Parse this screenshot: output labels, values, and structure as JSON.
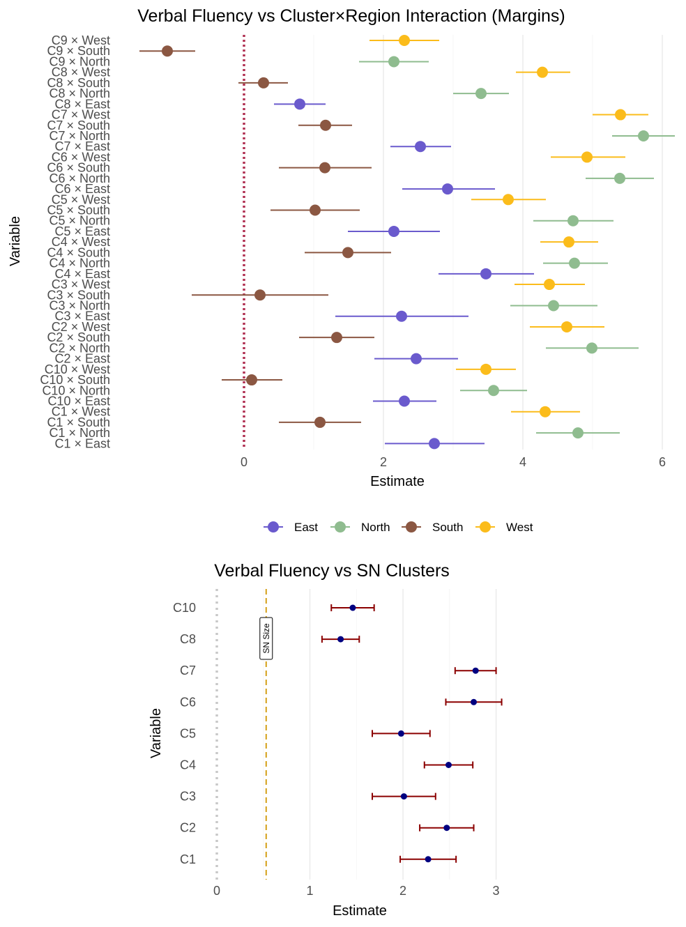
{
  "chart_data": [
    {
      "type": "forest",
      "title": "Verbal Fluency vs Cluster×Region Interaction (Margins)",
      "xlabel": "Estimate",
      "ylabel": "Variable",
      "xlim": [
        -1.85,
        6.3
      ],
      "x_ticks": [
        0,
        2,
        4,
        6
      ],
      "reference_line": {
        "x": 0,
        "style": "dotted",
        "color": "#b03052"
      },
      "grid": "vertical",
      "legend": {
        "position": "bottom",
        "entries": [
          {
            "name": "East",
            "color": "#6a5acd"
          },
          {
            "name": "North",
            "color": "#8fbc8f"
          },
          {
            "name": "South",
            "color": "#8b5742"
          },
          {
            "name": "West",
            "color": "#fbbc1b"
          }
        ]
      },
      "points": [
        {
          "label": "C9 × West",
          "group": "West",
          "est": 2.3,
          "lo": 1.8,
          "hi": 2.8
        },
        {
          "label": "C9 × South",
          "group": "South",
          "est": -1.1,
          "lo": -1.5,
          "hi": -0.7
        },
        {
          "label": "C9 × North",
          "group": "North",
          "est": 2.15,
          "lo": 1.65,
          "hi": 2.65
        },
        {
          "label": "C8 × West",
          "group": "West",
          "est": 4.28,
          "lo": 3.9,
          "hi": 4.68
        },
        {
          "label": "C8 × South",
          "group": "South",
          "est": 0.28,
          "lo": -0.08,
          "hi": 0.63
        },
        {
          "label": "C8 × North",
          "group": "North",
          "est": 3.4,
          "lo": 3.0,
          "hi": 3.8
        },
        {
          "label": "C8 × East",
          "group": "East",
          "est": 0.8,
          "lo": 0.43,
          "hi": 1.17
        },
        {
          "label": "C7 × West",
          "group": "West",
          "est": 5.4,
          "lo": 5.0,
          "hi": 5.8
        },
        {
          "label": "C7 × South",
          "group": "South",
          "est": 1.17,
          "lo": 0.78,
          "hi": 1.55
        },
        {
          "label": "C7 × North",
          "group": "North",
          "est": 5.73,
          "lo": 5.28,
          "hi": 6.18
        },
        {
          "label": "C7 × East",
          "group": "East",
          "est": 2.53,
          "lo": 2.1,
          "hi": 2.97
        },
        {
          "label": "C6 × West",
          "group": "West",
          "est": 4.92,
          "lo": 4.4,
          "hi": 5.47
        },
        {
          "label": "C6 × South",
          "group": "South",
          "est": 1.16,
          "lo": 0.5,
          "hi": 1.83
        },
        {
          "label": "C6 × North",
          "group": "North",
          "est": 5.39,
          "lo": 4.9,
          "hi": 5.88
        },
        {
          "label": "C6 × East",
          "group": "East",
          "est": 2.92,
          "lo": 2.27,
          "hi": 3.6
        },
        {
          "label": "C5 × West",
          "group": "West",
          "est": 3.79,
          "lo": 3.26,
          "hi": 4.33
        },
        {
          "label": "C5 × South",
          "group": "South",
          "est": 1.02,
          "lo": 0.38,
          "hi": 1.66
        },
        {
          "label": "C5 × North",
          "group": "North",
          "est": 4.72,
          "lo": 4.15,
          "hi": 5.3
        },
        {
          "label": "C5 × East",
          "group": "East",
          "est": 2.15,
          "lo": 1.49,
          "hi": 2.81
        },
        {
          "label": "C4 × West",
          "group": "West",
          "est": 4.66,
          "lo": 4.25,
          "hi": 5.08
        },
        {
          "label": "C4 × South",
          "group": "South",
          "est": 1.49,
          "lo": 0.87,
          "hi": 2.11
        },
        {
          "label": "C4 × North",
          "group": "North",
          "est": 4.74,
          "lo": 4.29,
          "hi": 5.22
        },
        {
          "label": "C4 × East",
          "group": "East",
          "est": 3.47,
          "lo": 2.79,
          "hi": 4.16
        },
        {
          "label": "C3 × West",
          "group": "West",
          "est": 4.38,
          "lo": 3.88,
          "hi": 4.89
        },
        {
          "label": "C3 × South",
          "group": "South",
          "est": 0.23,
          "lo": -0.75,
          "hi": 1.21
        },
        {
          "label": "C3 × North",
          "group": "North",
          "est": 4.44,
          "lo": 3.82,
          "hi": 5.07
        },
        {
          "label": "C3 × East",
          "group": "East",
          "est": 2.26,
          "lo": 1.31,
          "hi": 3.22
        },
        {
          "label": "C2 × West",
          "group": "West",
          "est": 4.63,
          "lo": 4.1,
          "hi": 5.17
        },
        {
          "label": "C2 × South",
          "group": "South",
          "est": 1.33,
          "lo": 0.79,
          "hi": 1.87
        },
        {
          "label": "C2 × North",
          "group": "North",
          "est": 4.99,
          "lo": 4.33,
          "hi": 5.66
        },
        {
          "label": "C2 × East",
          "group": "East",
          "est": 2.47,
          "lo": 1.87,
          "hi": 3.07
        },
        {
          "label": "C10 × West",
          "group": "West",
          "est": 3.47,
          "lo": 3.04,
          "hi": 3.9
        },
        {
          "label": "C10 × South",
          "group": "South",
          "est": 0.11,
          "lo": -0.32,
          "hi": 0.55
        },
        {
          "label": "C10 × North",
          "group": "North",
          "est": 3.58,
          "lo": 3.1,
          "hi": 4.06
        },
        {
          "label": "C10 × East",
          "group": "East",
          "est": 2.3,
          "lo": 1.85,
          "hi": 2.76
        },
        {
          "label": "C1 × West",
          "group": "West",
          "est": 4.32,
          "lo": 3.83,
          "hi": 4.82
        },
        {
          "label": "C1 × South",
          "group": "South",
          "est": 1.09,
          "lo": 0.5,
          "hi": 1.68
        },
        {
          "label": "C1 × North",
          "group": "North",
          "est": 4.79,
          "lo": 4.19,
          "hi": 5.39
        },
        {
          "label": "C1 × East",
          "group": "East",
          "est": 2.73,
          "lo": 2.02,
          "hi": 3.45
        }
      ]
    },
    {
      "type": "forest",
      "title": "Verbal Fluency vs SN Clusters",
      "xlabel": "Estimate",
      "ylabel": "Variable",
      "xlim": [
        -0.12,
        3.55
      ],
      "x_ticks": [
        0,
        1,
        2,
        3
      ],
      "reference_line": {
        "x": 0,
        "style": "dotted",
        "color": "#c8c8c8"
      },
      "annotation_line": {
        "x": 0.53,
        "style": "dashed",
        "color": "#d4a017",
        "label": "SN Size"
      },
      "grid": "vertical",
      "point_color": "#000080",
      "errorbar_color": "#8b0000",
      "points": [
        {
          "label": "C10",
          "est": 1.46,
          "lo": 1.23,
          "hi": 1.69
        },
        {
          "label": "C8",
          "est": 1.33,
          "lo": 1.13,
          "hi": 1.53
        },
        {
          "label": "C7",
          "est": 2.78,
          "lo": 2.56,
          "hi": 3.0
        },
        {
          "label": "C6",
          "est": 2.76,
          "lo": 2.46,
          "hi": 3.06
        },
        {
          "label": "C5",
          "est": 1.98,
          "lo": 1.67,
          "hi": 2.29
        },
        {
          "label": "C4",
          "est": 2.49,
          "lo": 2.23,
          "hi": 2.75
        },
        {
          "label": "C3",
          "est": 2.01,
          "lo": 1.67,
          "hi": 2.35
        },
        {
          "label": "C2",
          "est": 2.47,
          "lo": 2.18,
          "hi": 2.76
        },
        {
          "label": "C1",
          "est": 2.27,
          "lo": 1.97,
          "hi": 2.57
        }
      ]
    }
  ]
}
